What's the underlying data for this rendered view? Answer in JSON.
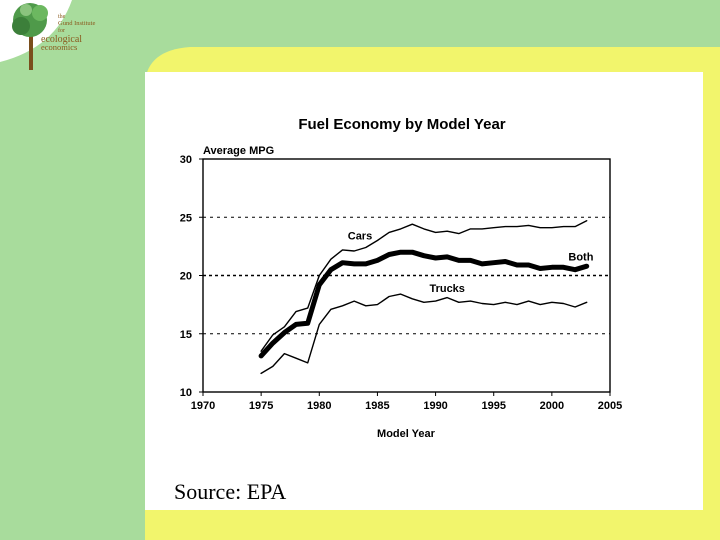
{
  "logo": {
    "small_line1": "the",
    "small_line2": "Gund Institute",
    "small_line3": "for",
    "main_line1": "ecological",
    "main_line2": "economics"
  },
  "source_note": "Source: EPA",
  "colors": {
    "bg_green": "#a8dc9c",
    "bg_yellow": "#f2f56c",
    "panel": "#ffffff",
    "line": "#000000",
    "logo_text": "#8a5a1e"
  },
  "chart_data": {
    "type": "line",
    "title": "Fuel Economy by Model Year",
    "ylabel": "Average MPG",
    "xlabel": "Model Year",
    "xlim": [
      1970,
      2005
    ],
    "ylim": [
      10,
      30
    ],
    "xticks": [
      "1970",
      "1975",
      "1980",
      "1985",
      "1990",
      "1995",
      "2000",
      "2005"
    ],
    "yticks": [
      "10",
      "15",
      "20",
      "25",
      "30"
    ],
    "gridlines_y": [
      15,
      20,
      25
    ],
    "x": [
      1975,
      1976,
      1977,
      1978,
      1979,
      1980,
      1981,
      1982,
      1983,
      1984,
      1985,
      1986,
      1987,
      1988,
      1989,
      1990,
      1991,
      1992,
      1993,
      1994,
      1995,
      1996,
      1997,
      1998,
      1999,
      2000,
      2001,
      2002,
      2003
    ],
    "series": [
      {
        "name": "Cars",
        "weight": "thin",
        "values": [
          13.5,
          14.9,
          15.6,
          16.9,
          17.2,
          20.0,
          21.4,
          22.2,
          22.1,
          22.4,
          23.0,
          23.7,
          24.0,
          24.4,
          24.0,
          23.7,
          23.8,
          23.6,
          24.0,
          24.0,
          24.1,
          24.2,
          24.2,
          24.3,
          24.1,
          24.1,
          24.2,
          24.2,
          24.7
        ]
      },
      {
        "name": "Both",
        "weight": "thick",
        "values": [
          13.1,
          14.2,
          15.1,
          15.8,
          15.9,
          19.2,
          20.5,
          21.1,
          21.0,
          21.0,
          21.3,
          21.8,
          22.0,
          22.0,
          21.7,
          21.5,
          21.6,
          21.3,
          21.3,
          21.0,
          21.1,
          21.2,
          20.9,
          20.9,
          20.6,
          20.7,
          20.7,
          20.5,
          20.8
        ]
      },
      {
        "name": "Trucks",
        "weight": "thin",
        "values": [
          11.6,
          12.2,
          13.3,
          12.9,
          12.5,
          15.8,
          17.1,
          17.4,
          17.8,
          17.4,
          17.5,
          18.2,
          18.4,
          18.0,
          17.7,
          17.8,
          18.1,
          17.7,
          17.8,
          17.6,
          17.5,
          17.7,
          17.5,
          17.8,
          17.5,
          17.7,
          17.6,
          17.3,
          17.7
        ]
      }
    ],
    "annotations": [
      {
        "text": "Cars",
        "x": 1983.5,
        "y": 23.1,
        "anchor": "middle"
      },
      {
        "text": "Both",
        "x": 2002.5,
        "y": 21.3,
        "anchor": "middle"
      },
      {
        "text": "Trucks",
        "x": 1991.0,
        "y": 18.6,
        "anchor": "middle"
      }
    ]
  }
}
